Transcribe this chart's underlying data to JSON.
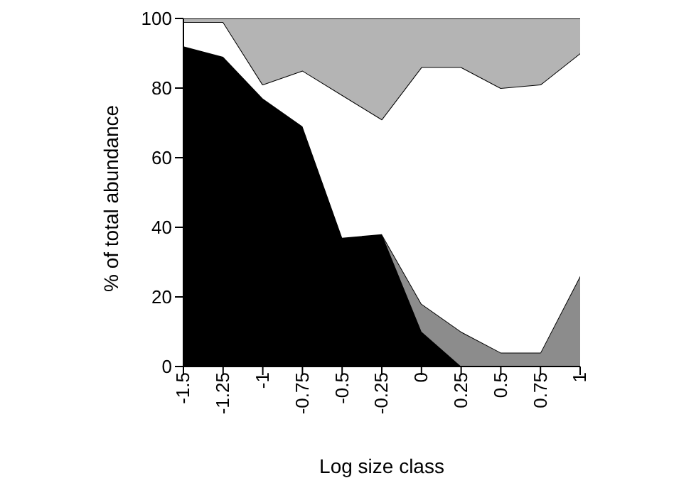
{
  "chart_data": {
    "type": "area",
    "stacked": true,
    "xlabel": "Log size class",
    "ylabel": "% of total abundance",
    "x": [
      -1.5,
      -1.25,
      -1,
      -0.75,
      -0.5,
      -0.25,
      0,
      0.25,
      0.5,
      0.75,
      1
    ],
    "xlim": [
      -1.5,
      1
    ],
    "xticks": [
      -1.5,
      -1.25,
      -1,
      -0.75,
      -0.5,
      -0.25,
      0,
      0.25,
      0.5,
      0.75,
      1
    ],
    "ylim": [
      0,
      100
    ],
    "yticks": [
      0,
      20,
      40,
      60,
      80,
      100
    ],
    "grid": false,
    "legend": false,
    "series": [
      {
        "color": "#000000",
        "values": [
          92,
          89,
          77,
          69,
          37,
          38,
          10,
          0,
          0,
          0,
          0
        ]
      },
      {
        "color": "#8c8c8c",
        "values": [
          null,
          null,
          null,
          null,
          null,
          0,
          8,
          10,
          4,
          4,
          26
        ]
      },
      {
        "color": "#ffffff",
        "values": [
          7,
          10,
          4,
          16,
          41,
          33,
          68,
          76,
          76,
          77,
          64
        ]
      },
      {
        "color": "#b4b4b4",
        "values": [
          1,
          1,
          19,
          15,
          22,
          29,
          14,
          14,
          20,
          19,
          10
        ]
      }
    ]
  }
}
